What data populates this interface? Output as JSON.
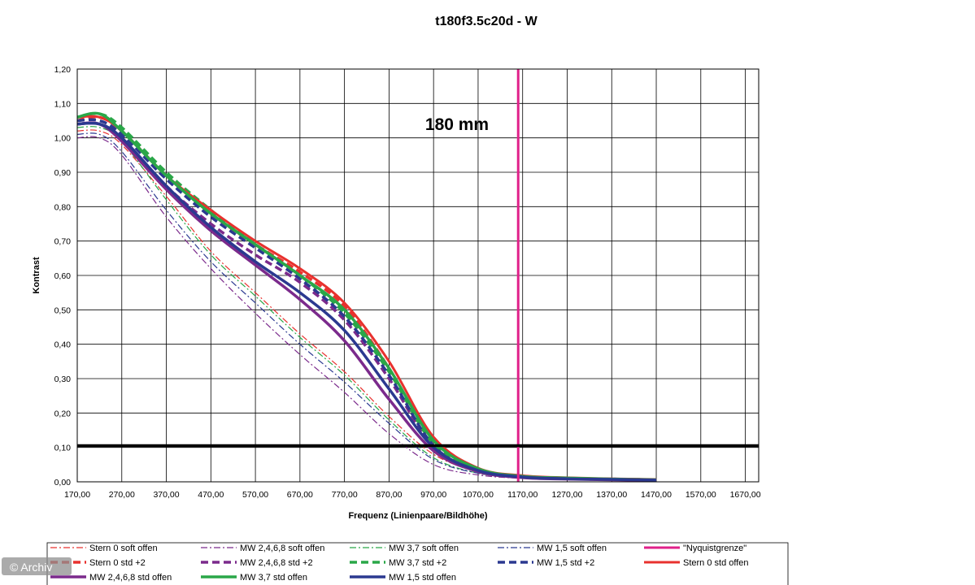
{
  "chart_data": {
    "type": "line",
    "title": "t180f3.5c20d - W",
    "xlabel": "Frequenz (Linienpaare/Bildhöhe)",
    "ylabel": "Kontrast",
    "xlim": [
      170,
      1700
    ],
    "ylim": [
      0,
      1.2
    ],
    "grid": true,
    "legend_position": "bottom",
    "x_ticks": [
      "170,00",
      "270,00",
      "370,00",
      "470,00",
      "570,00",
      "670,00",
      "770,00",
      "870,00",
      "970,00",
      "1070,00",
      "1170,00",
      "1270,00",
      "1370,00",
      "1470,00",
      "1570,00",
      "1670,00"
    ],
    "y_ticks": [
      "0,00",
      "0,10",
      "0,20",
      "0,30",
      "0,40",
      "0,50",
      "0,60",
      "0,70",
      "0,80",
      "0,90",
      "1,00",
      "1,10",
      "1,20"
    ],
    "annotation": "180 mm",
    "reference_lines": [
      {
        "type": "horizontal",
        "y": 0.105,
        "color": "#000000"
      },
      {
        "type": "vertical",
        "x": 1160,
        "color": "#e0218a"
      }
    ],
    "series": [
      {
        "name": "Stern 0 soft offen",
        "color": "#e8312e",
        "dash": "8,3,2,3",
        "width": 1.2,
        "x": [
          170,
          220,
          270,
          370,
          470,
          570,
          670,
          770,
          870,
          970,
          1070,
          1170,
          1270,
          1370,
          1470
        ],
        "y": [
          1.02,
          1.02,
          0.98,
          0.83,
          0.67,
          0.55,
          0.43,
          0.32,
          0.19,
          0.08,
          0.03,
          0.012,
          0.008,
          0.006,
          0.004
        ]
      },
      {
        "name": "MW 2,4,6,8 soft offen",
        "color": "#7b2a8c",
        "dash": "8,3,2,3",
        "width": 1.2,
        "x": [
          170,
          220,
          270,
          370,
          470,
          570,
          670,
          770,
          870,
          970,
          1070,
          1170,
          1270,
          1370,
          1470
        ],
        "y": [
          1.0,
          1.0,
          0.95,
          0.77,
          0.62,
          0.49,
          0.37,
          0.26,
          0.14,
          0.05,
          0.02,
          0.01,
          0.006,
          0.004,
          0.003
        ]
      },
      {
        "name": "MW 3,7 soft offen",
        "color": "#2aa748",
        "dash": "8,3,2,3",
        "width": 1.2,
        "x": [
          170,
          220,
          270,
          370,
          470,
          570,
          670,
          770,
          870,
          970,
          1070,
          1170,
          1270,
          1370,
          1470
        ],
        "y": [
          1.03,
          1.03,
          0.99,
          0.82,
          0.66,
          0.54,
          0.42,
          0.31,
          0.18,
          0.07,
          0.025,
          0.012,
          0.008,
          0.006,
          0.004
        ]
      },
      {
        "name": "MW 1,5 soft offen",
        "color": "#2b3990",
        "dash": "8,3,2,3",
        "width": 1.2,
        "x": [
          170,
          220,
          270,
          370,
          470,
          570,
          670,
          770,
          870,
          970,
          1070,
          1170,
          1270,
          1370,
          1470
        ],
        "y": [
          1.01,
          1.01,
          0.96,
          0.79,
          0.64,
          0.52,
          0.4,
          0.29,
          0.17,
          0.065,
          0.025,
          0.011,
          0.007,
          0.005,
          0.004
        ]
      },
      {
        "name": "\"Nyquistgrenze\"",
        "color": "#e0218a",
        "dash": "",
        "width": 3,
        "x": [
          1160,
          1160
        ],
        "y": [
          0,
          1.2
        ]
      },
      {
        "name": "Stern 0 std +2",
        "color": "#e8312e",
        "dash": "9,5",
        "width": 3.5,
        "x": [
          170,
          220,
          270,
          370,
          470,
          570,
          670,
          770,
          870,
          970,
          1070,
          1170,
          1270,
          1370,
          1470
        ],
        "y": [
          1.05,
          1.06,
          1.02,
          0.89,
          0.78,
          0.69,
          0.61,
          0.51,
          0.33,
          0.11,
          0.035,
          0.015,
          0.01,
          0.008,
          0.006
        ]
      },
      {
        "name": "MW 2,4,6,8 std +2",
        "color": "#7b2a8c",
        "dash": "9,5",
        "width": 3.5,
        "x": [
          170,
          220,
          270,
          370,
          470,
          570,
          670,
          770,
          870,
          970,
          1070,
          1170,
          1270,
          1370,
          1470
        ],
        "y": [
          1.04,
          1.04,
          1.0,
          0.86,
          0.75,
          0.66,
          0.58,
          0.47,
          0.3,
          0.1,
          0.03,
          0.014,
          0.009,
          0.007,
          0.005
        ]
      },
      {
        "name": "MW 3,7 std +2",
        "color": "#2aa748",
        "dash": "9,5",
        "width": 3.5,
        "x": [
          170,
          220,
          270,
          370,
          470,
          570,
          670,
          770,
          870,
          970,
          1070,
          1170,
          1270,
          1370,
          1470
        ],
        "y": [
          1.06,
          1.07,
          1.03,
          0.9,
          0.79,
          0.69,
          0.6,
          0.49,
          0.32,
          0.11,
          0.035,
          0.015,
          0.01,
          0.008,
          0.006
        ]
      },
      {
        "name": "MW 1,5 std +2",
        "color": "#2b3990",
        "dash": "9,5",
        "width": 3.5,
        "x": [
          170,
          220,
          270,
          370,
          470,
          570,
          670,
          770,
          870,
          970,
          1070,
          1170,
          1270,
          1370,
          1470
        ],
        "y": [
          1.05,
          1.05,
          1.01,
          0.88,
          0.77,
          0.68,
          0.59,
          0.48,
          0.31,
          0.105,
          0.033,
          0.014,
          0.01,
          0.008,
          0.006
        ]
      },
      {
        "name": "Stern 0 std offen",
        "color": "#e8312e",
        "dash": "",
        "width": 3,
        "x": [
          170,
          220,
          270,
          370,
          470,
          570,
          670,
          770,
          870,
          970,
          1070,
          1170,
          1270,
          1370,
          1470
        ],
        "y": [
          1.06,
          1.06,
          1.02,
          0.89,
          0.79,
          0.7,
          0.62,
          0.52,
          0.35,
          0.13,
          0.04,
          0.018,
          0.012,
          0.009,
          0.007
        ]
      },
      {
        "name": "MW 2,4,6,8 std offen",
        "color": "#7b2a8c",
        "dash": "",
        "width": 3.5,
        "x": [
          170,
          220,
          270,
          370,
          470,
          570,
          670,
          770,
          870,
          970,
          1070,
          1170,
          1270,
          1370,
          1470
        ],
        "y": [
          1.04,
          1.04,
          0.99,
          0.85,
          0.73,
          0.63,
          0.53,
          0.41,
          0.24,
          0.09,
          0.03,
          0.012,
          0.008,
          0.006,
          0.004
        ]
      },
      {
        "name": "MW 3,7 std offen",
        "color": "#2aa748",
        "dash": "",
        "width": 3.5,
        "x": [
          170,
          220,
          270,
          370,
          470,
          570,
          670,
          770,
          870,
          970,
          1070,
          1170,
          1270,
          1370,
          1470
        ],
        "y": [
          1.06,
          1.07,
          1.02,
          0.89,
          0.78,
          0.69,
          0.6,
          0.5,
          0.33,
          0.12,
          0.038,
          0.016,
          0.011,
          0.008,
          0.006
        ]
      },
      {
        "name": "MW 1,5 std offen",
        "color": "#2b3990",
        "dash": "",
        "width": 3.5,
        "x": [
          170,
          220,
          270,
          370,
          470,
          570,
          670,
          770,
          870,
          970,
          1070,
          1170,
          1270,
          1370,
          1470
        ],
        "y": [
          1.04,
          1.04,
          1.0,
          0.86,
          0.74,
          0.64,
          0.55,
          0.44,
          0.27,
          0.1,
          0.033,
          0.014,
          0.009,
          0.007,
          0.005
        ]
      }
    ]
  },
  "watermark": "© Archiv"
}
